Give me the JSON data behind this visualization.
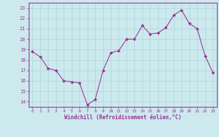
{
  "x": [
    0,
    1,
    2,
    3,
    4,
    5,
    6,
    7,
    8,
    9,
    10,
    11,
    12,
    13,
    14,
    15,
    16,
    17,
    18,
    19,
    20,
    21,
    22,
    23
  ],
  "y": [
    18.8,
    18.3,
    17.2,
    17.0,
    16.0,
    15.9,
    15.8,
    13.7,
    14.2,
    17.0,
    18.7,
    18.9,
    20.0,
    20.0,
    21.3,
    20.5,
    20.6,
    21.1,
    22.3,
    22.8,
    21.5,
    21.0,
    18.4,
    16.8
  ],
  "line_color": "#993399",
  "marker": "D",
  "marker_size": 2,
  "bg_color": "#cce9ed",
  "grid_color": "#b0d8dc",
  "xlabel": "Windchill (Refroidissement éolien,°C)",
  "ylabel_ticks": [
    14,
    15,
    16,
    17,
    18,
    19,
    20,
    21,
    22,
    23
  ],
  "xticks": [
    0,
    1,
    2,
    3,
    4,
    5,
    6,
    7,
    8,
    9,
    10,
    11,
    12,
    13,
    14,
    15,
    16,
    17,
    18,
    19,
    20,
    21,
    22,
    23
  ],
  "ylim": [
    13.5,
    23.5
  ],
  "xlim": [
    -0.5,
    23.5
  ],
  "tick_color": "#993399",
  "label_color": "#993399"
}
